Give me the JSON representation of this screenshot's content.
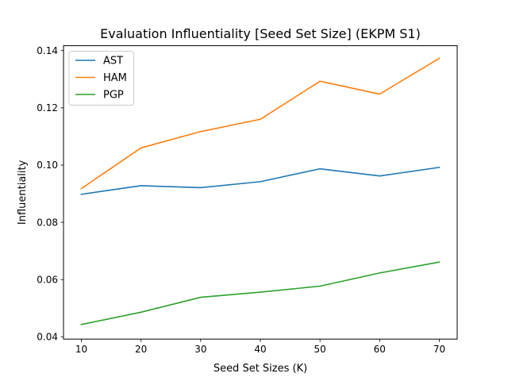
{
  "chart_data": {
    "type": "line",
    "title": "Evaluation Influentiality [Seed Set Size] (EKPM S1)",
    "xlabel": "Seed Set Sizes (K)",
    "ylabel": "Influentiality",
    "x": [
      10,
      20,
      30,
      40,
      50,
      60,
      70
    ],
    "xlim": [
      7,
      73
    ],
    "ylim": [
      0.0392,
      0.1417
    ],
    "xticks": [
      "10",
      "20",
      "30",
      "40",
      "50",
      "60",
      "70"
    ],
    "yticks": [
      "0.04",
      "0.06",
      "0.08",
      "0.10",
      "0.12",
      "0.14"
    ],
    "grid": false,
    "legend": "upper-left",
    "series": [
      {
        "name": "AST",
        "color": "#1f77b4",
        "values": [
          0.0898,
          0.0928,
          0.0921,
          0.0942,
          0.0987,
          0.0962,
          0.0992
        ]
      },
      {
        "name": "HAM",
        "color": "#ff7f0e",
        "values": [
          0.0918,
          0.106,
          0.1117,
          0.116,
          0.1293,
          0.1248,
          0.1373
        ]
      },
      {
        "name": "PGP",
        "color": "#2ca02c",
        "values": [
          0.0443,
          0.0486,
          0.0538,
          0.0556,
          0.0577,
          0.0623,
          0.0661
        ]
      }
    ]
  }
}
